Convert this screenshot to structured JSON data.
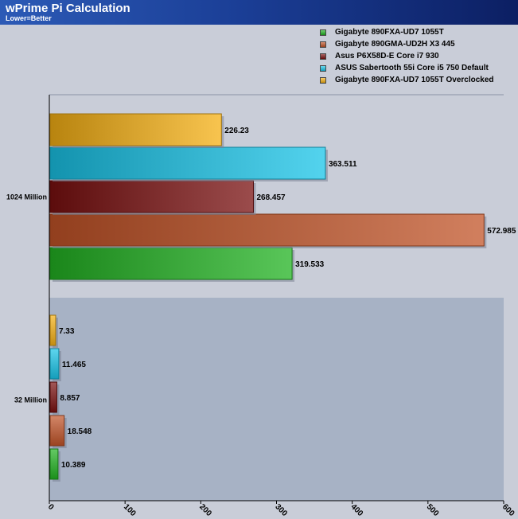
{
  "header": {
    "title": "wPrime Pi Calculation",
    "subtitle": "Lower=Better"
  },
  "chart_data": {
    "type": "bar",
    "orientation": "horizontal",
    "title": "wPrime Pi Calculation",
    "subtitle": "Lower=Better",
    "xlabel": "",
    "ylabel": "",
    "xlim": [
      0,
      600
    ],
    "xticks": [
      0,
      100,
      200,
      300,
      400,
      500,
      600
    ],
    "grid": false,
    "legend_position": "top-right",
    "categories": [
      "1024 Million",
      "32 Million"
    ],
    "series": [
      {
        "name": "Gigabyte 890FXA-UD7 1055T",
        "color": "#22b322",
        "values": [
          319.533,
          10.389
        ]
      },
      {
        "name": "Gigabyte 890GMA-UD2H X3 445",
        "color": "#c25428",
        "values": [
          572.985,
          18.548
        ]
      },
      {
        "name": "Asus P6X58D-E Core i7 930",
        "color": "#7a1010",
        "values": [
          268.457,
          8.857
        ]
      },
      {
        "name": "ASUS Sabertooth 55i Core i5 750 Default",
        "color": "#19c4e8",
        "values": [
          363.511,
          11.465
        ]
      },
      {
        "name": "Gigabyte 890FXA-UD7 1055T Overclocked",
        "color": "#f5b014",
        "values": [
          226.23,
          7.33
        ]
      }
    ],
    "value_labels": [
      [
        "319.533",
        "10.389"
      ],
      [
        "572.985",
        "18.548"
      ],
      [
        "268.457",
        "8.857"
      ],
      [
        "363.511",
        "11.465"
      ],
      [
        "226.23",
        "7.33"
      ]
    ]
  }
}
